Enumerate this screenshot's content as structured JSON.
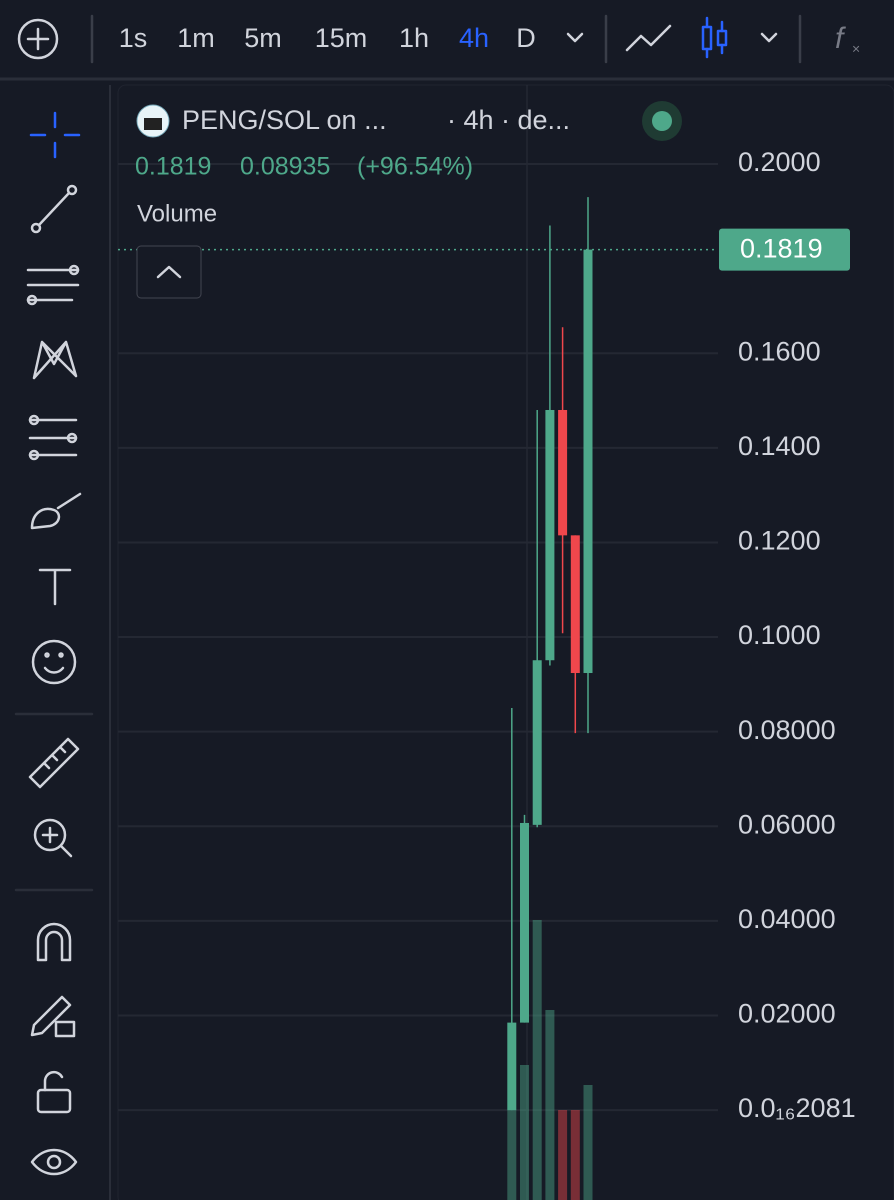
{
  "toolbar": {
    "intervals": [
      "1s",
      "1m",
      "5m",
      "15m",
      "1h",
      "4h",
      "D"
    ],
    "active_interval": "4h",
    "active_color": "#2962ff"
  },
  "chart_data": {
    "type": "candlestick",
    "title": "PENG/SOL on ...",
    "subtitle": "· 4h · de...",
    "last_close_label": "0.1819",
    "change": 0.08935,
    "change_pct_label": "(+96.54%)",
    "volume_label": "Volume",
    "categories": [
      null,
      null,
      null,
      null,
      null,
      null,
      null
    ],
    "open": [
      0.0,
      0.0185,
      0.0603,
      0.0951,
      0.148,
      0.1215,
      0.0924
    ],
    "high": [
      0.085,
      0.0624,
      0.148,
      0.187,
      0.1655,
      0.1215,
      0.193
    ],
    "low": [
      0.0,
      0.0185,
      0.0598,
      0.094,
      0.1008,
      0.0797,
      0.0797
    ],
    "close": [
      0.0185,
      0.0607,
      0.0951,
      0.148,
      0.1215,
      0.0924,
      0.1819
    ],
    "volume": [
      90,
      135,
      280,
      190,
      90,
      90,
      115
    ],
    "up_color": "#4ea88a",
    "down_color": "#f0474c",
    "ylim": [
      -0.019,
      0.2167
    ],
    "yticks": [
      {
        "value": 2.081e-17,
        "label": "0.0₁₆2081"
      },
      {
        "value": 0.02,
        "label": "0.02000"
      },
      {
        "value": 0.04,
        "label": "0.04000"
      },
      {
        "value": 0.06,
        "label": "0.06000"
      },
      {
        "value": 0.08,
        "label": "0.08000"
      },
      {
        "value": 0.1,
        "label": "0.1000"
      },
      {
        "value": 0.12,
        "label": "0.1200"
      },
      {
        "value": 0.14,
        "label": "0.1400"
      },
      {
        "value": 0.16,
        "label": "0.1600"
      },
      {
        "value": 0.2,
        "label": "0.2000"
      }
    ],
    "grid": true
  }
}
